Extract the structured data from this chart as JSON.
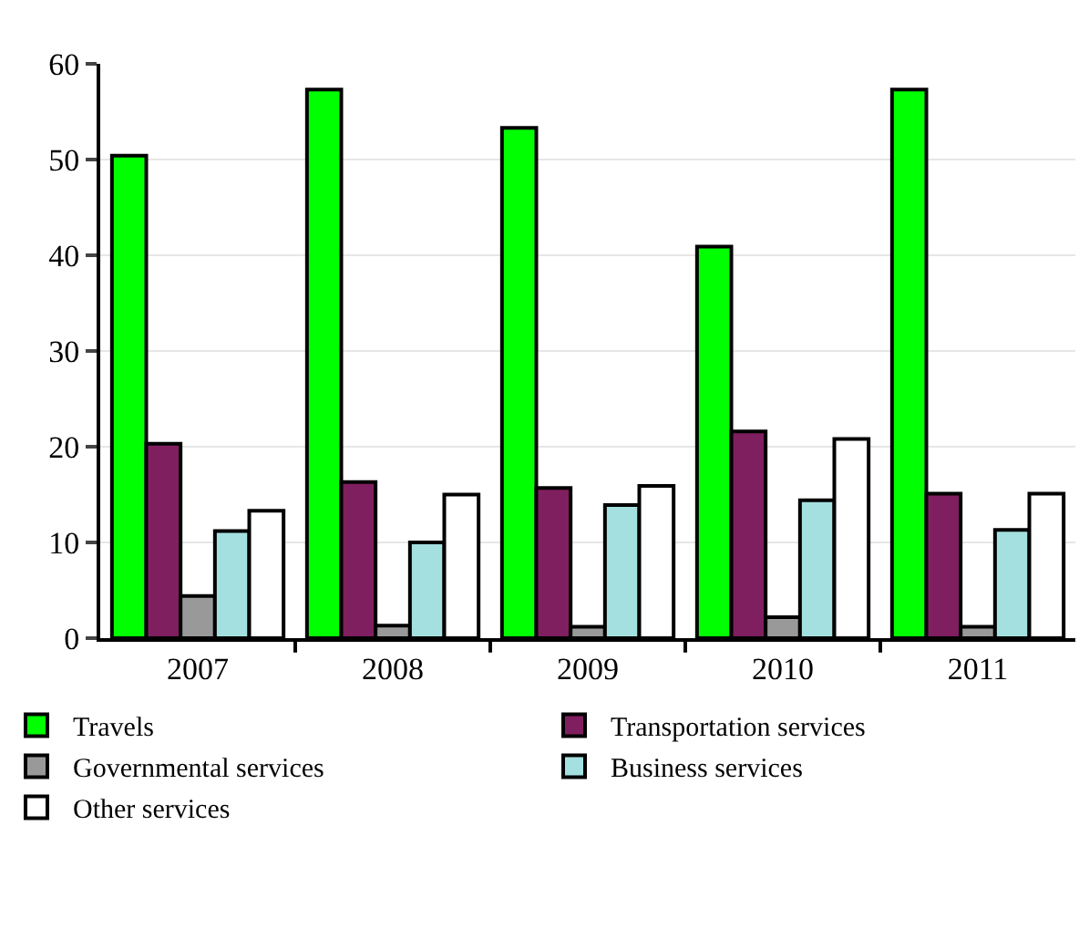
{
  "chart_data": {
    "type": "bar",
    "categories": [
      "2007",
      "2008",
      "2009",
      "2010",
      "2011"
    ],
    "series": [
      {
        "name": "Travels",
        "color": "#00ff00",
        "values": [
          50.4,
          57.3,
          53.3,
          40.9,
          57.3
        ]
      },
      {
        "name": "Transportation services",
        "color": "#7f1f5f",
        "values": [
          20.3,
          16.3,
          15.7,
          21.6,
          15.1
        ]
      },
      {
        "name": "Governmental services",
        "color": "#999999",
        "values": [
          4.4,
          1.3,
          1.2,
          2.2,
          1.2
        ]
      },
      {
        "name": "Business services",
        "color": "#a5e0e0",
        "values": [
          11.2,
          10,
          13.9,
          14.4,
          11.3
        ]
      },
      {
        "name": "Other services",
        "color": "#ffffff",
        "values": [
          13.3,
          15,
          15.9,
          20.8,
          15.1
        ]
      }
    ],
    "ylim": [
      0,
      60
    ],
    "yticks": [
      0,
      10,
      20,
      30,
      40,
      50,
      60
    ],
    "grid": "y",
    "legend": "bottom"
  }
}
